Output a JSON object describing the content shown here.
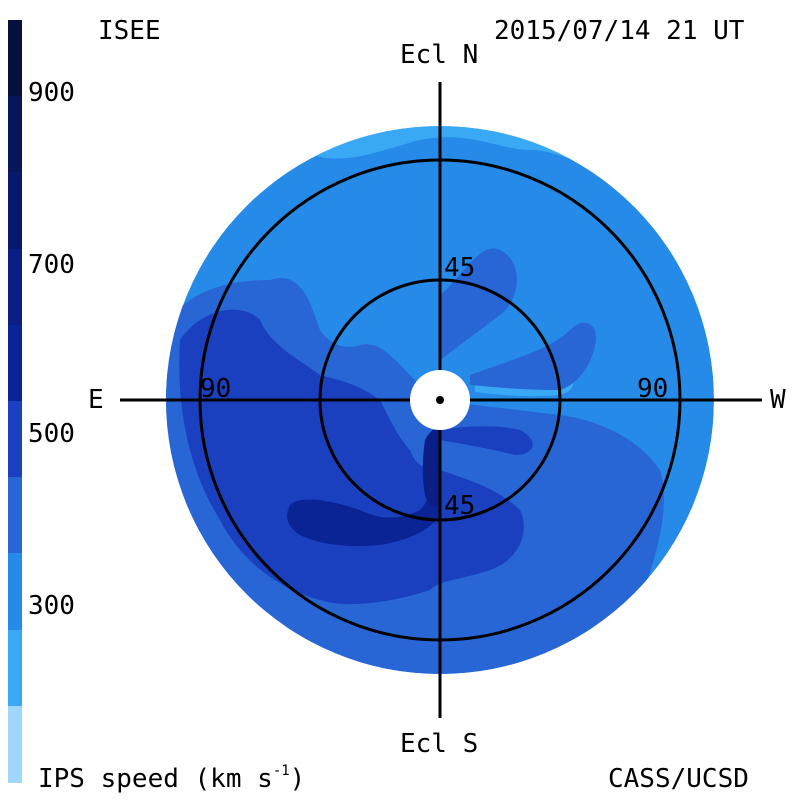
{
  "header": {
    "left_label": "ISEE",
    "timestamp": "2015/07/14 21 UT"
  },
  "footer": {
    "speed_label": "IPS speed (km s",
    "speed_label_sup": "-1",
    "speed_label_end": ")",
    "credit": "CASS/UCSD"
  },
  "map": {
    "north_label": "Ecl N",
    "south_label": "Ecl S",
    "east_label": "E",
    "west_label": "W",
    "ring_labels": {
      "inner_north": "45",
      "inner_south": "45",
      "outer_east": "90",
      "outer_west": "90"
    }
  },
  "colorbar": {
    "tick_labels": [
      "900",
      "700",
      "500",
      "300"
    ],
    "levels": [
      {
        "range": "1000+",
        "color": "#05103f"
      },
      {
        "range": "900-1000",
        "color": "#061658"
      },
      {
        "range": "800-900",
        "color": "#07186f"
      },
      {
        "range": "700-800",
        "color": "#0b1e86"
      },
      {
        "range": "600-700",
        "color": "#0a2495"
      },
      {
        "range": "500-600",
        "color": "#1a3fbf"
      },
      {
        "range": "400-500",
        "color": "#2866d6"
      },
      {
        "range": "300-400",
        "color": "#258ae8"
      },
      {
        "range": "200-300",
        "color": "#39a9f5"
      },
      {
        "range": "<200",
        "color": "#9fd6fb"
      }
    ]
  }
}
